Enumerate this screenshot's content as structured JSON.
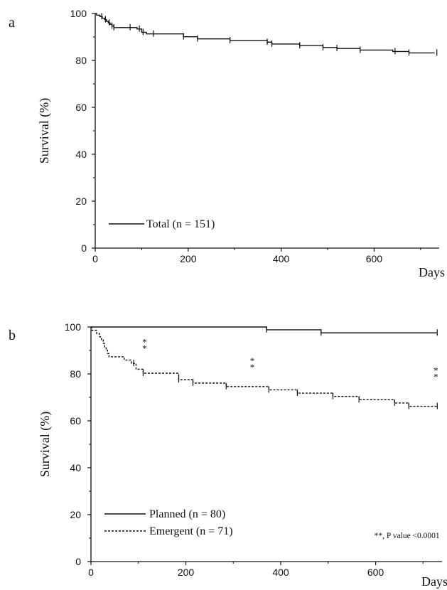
{
  "chart_data": [
    {
      "panel_label": "a",
      "type": "line",
      "xlabel": "Days",
      "ylabel": "Survival (%)",
      "xlim": [
        0,
        740
      ],
      "ylim": [
        0,
        100
      ],
      "x_ticks": [
        "0",
        "200",
        "400",
        "600"
      ],
      "y_ticks": [
        "0",
        "20",
        "40",
        "60",
        "80",
        "100"
      ],
      "legend_position": "bottom-left",
      "annotations": [],
      "series": [
        {
          "name": "Total (n = 151)",
          "style": "solid",
          "points": [
            [
              0,
              100
            ],
            [
              3,
              99.3
            ],
            [
              10,
              98.7
            ],
            [
              15,
              98.0
            ],
            [
              20,
              97.4
            ],
            [
              24,
              96.7
            ],
            [
              28,
              96.0
            ],
            [
              32,
              95.4
            ],
            [
              36,
              94.7
            ],
            [
              40,
              94.0
            ],
            [
              90,
              93.4
            ],
            [
              100,
              92.0
            ],
            [
              110,
              91.3
            ],
            [
              190,
              90.1
            ],
            [
              220,
              89.2
            ],
            [
              290,
              88.5
            ],
            [
              370,
              87.8
            ],
            [
              380,
              87.0
            ],
            [
              440,
              86.3
            ],
            [
              490,
              85.5
            ],
            [
              520,
              85.1
            ],
            [
              570,
              84.4
            ],
            [
              640,
              83.8
            ],
            [
              675,
              83.2
            ],
            [
              730,
              83.2
            ]
          ],
          "censor_days": [
            14,
            22,
            30,
            36,
            40,
            75,
            95,
            103,
            125,
            190,
            220,
            290,
            370,
            380,
            440,
            490,
            520,
            570,
            645,
            675,
            735
          ]
        }
      ]
    },
    {
      "panel_label": "b",
      "type": "line",
      "xlabel": "Days",
      "ylabel": "Survival (%)",
      "xlim": [
        0,
        740
      ],
      "ylim": [
        0,
        100
      ],
      "x_ticks": [
        "0",
        "200",
        "400",
        "600"
      ],
      "y_ticks": [
        "0",
        "20",
        "40",
        "60",
        "80",
        "100"
      ],
      "legend_position": "bottom-left",
      "annotations": [
        {
          "text": "**",
          "x": 113,
          "y": 91,
          "vertical": true
        },
        {
          "text": "**",
          "x": 340,
          "y": 83,
          "vertical": true
        },
        {
          "text": "**",
          "x": 727,
          "y": 79,
          "vertical": true
        },
        {
          "text": "**, P value <0.0001",
          "x": 735,
          "y": 10,
          "anchor": "end",
          "vertical": false
        }
      ],
      "series": [
        {
          "name": "Planned (n = 80)",
          "style": "solid",
          "points": [
            [
              0,
              100
            ],
            [
              370,
              100
            ],
            [
              370,
              98.8
            ],
            [
              485,
              98.8
            ],
            [
              485,
              97.5
            ],
            [
              730,
              97.5
            ]
          ],
          "censor_days": [
            370,
            485,
            730
          ]
        },
        {
          "name": "Emergent (n = 71)",
          "style": "dashed",
          "points": [
            [
              0,
              100
            ],
            [
              2,
              98.6
            ],
            [
              12,
              97.2
            ],
            [
              18,
              95.8
            ],
            [
              22,
              94.4
            ],
            [
              26,
              93.0
            ],
            [
              29,
              91.5
            ],
            [
              32,
              90.1
            ],
            [
              35,
              88.7
            ],
            [
              38,
              87.3
            ],
            [
              70,
              85.9
            ],
            [
              85,
              84.5
            ],
            [
              95,
              82.0
            ],
            [
              110,
              80.3
            ],
            [
              185,
              77.5
            ],
            [
              215,
              76.1
            ],
            [
              285,
              74.6
            ],
            [
              375,
              73.2
            ],
            [
              435,
              71.8
            ],
            [
              510,
              70.4
            ],
            [
              565,
              69.0
            ],
            [
              640,
              67.6
            ],
            [
              670,
              66.2
            ],
            [
              730,
              66.2
            ]
          ],
          "censor_days": [
            90,
            110,
            185,
            215,
            285,
            375,
            435,
            510,
            565,
            640,
            670,
            730
          ]
        }
      ]
    }
  ]
}
